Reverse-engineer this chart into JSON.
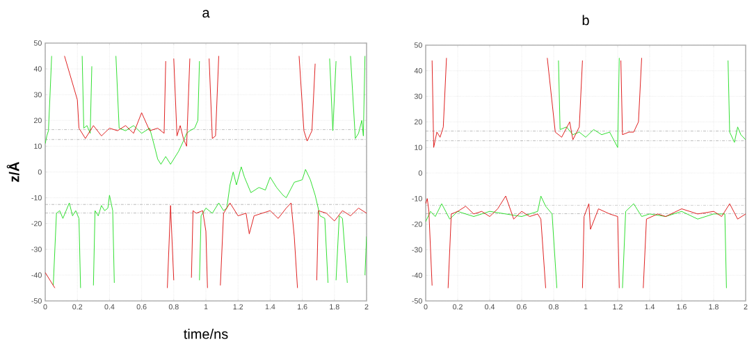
{
  "chart_data": [
    {
      "type": "line",
      "title": "a",
      "xlabel": "time/ns",
      "ylabel": "z/Å",
      "xlim": [
        0,
        2
      ],
      "ylim": [
        -50,
        50
      ],
      "xticks": [
        0,
        0.2,
        0.4,
        0.6,
        0.8,
        1,
        1.2,
        1.4,
        1.6,
        1.8,
        2
      ],
      "yticks": [
        -50,
        -40,
        -30,
        -20,
        -10,
        0,
        10,
        20,
        30,
        40,
        50
      ],
      "grid": true,
      "ref_lines": [
        {
          "axis": "y",
          "value": 16.4,
          "color": "#999999",
          "line_style": "dashed"
        },
        {
          "axis": "y",
          "value": 12.6,
          "color": "#999999",
          "line_style": "dashed"
        },
        {
          "axis": "y",
          "value": -12.6,
          "color": "#999999",
          "line_style": "dashed"
        },
        {
          "axis": "y",
          "value": -15.9,
          "color": "#999999",
          "line_style": "dashed"
        }
      ],
      "series": [
        {
          "color": "#22dd22",
          "x": [
            0,
            0.01,
            0.02,
            0.03,
            0.04
          ],
          "values": [
            11,
            14,
            16,
            30,
            45
          ]
        },
        {
          "color": "#22dd22",
          "x": [
            0.05,
            0.07,
            0.09,
            0.11,
            0.13,
            0.15,
            0.17,
            0.19,
            0.21,
            0.22
          ],
          "values": [
            -44,
            -16,
            -15,
            -18,
            -15,
            -12,
            -17,
            -15,
            -18,
            -45
          ]
        },
        {
          "color": "#22dd22",
          "x": [
            0.23,
            0.24,
            0.26,
            0.28,
            0.29
          ],
          "values": [
            45,
            17,
            18,
            15,
            41
          ]
        },
        {
          "color": "#22dd22",
          "x": [
            0.3,
            0.31,
            0.33,
            0.35,
            0.37,
            0.39,
            0.4,
            0.42,
            0.43
          ],
          "values": [
            -44,
            -15,
            -17,
            -13,
            -15,
            -14,
            -9,
            -15,
            -43
          ]
        },
        {
          "color": "#22dd22",
          "x": [
            0.44,
            0.46,
            0.5,
            0.55,
            0.6,
            0.65,
            0.68,
            0.7,
            0.72,
            0.75,
            0.78,
            0.8,
            0.83,
            0.86,
            0.88,
            0.9,
            0.93,
            0.95,
            0.96
          ],
          "values": [
            45,
            17,
            16,
            18,
            15,
            17,
            10,
            5,
            3,
            6,
            3,
            5,
            8,
            12,
            15,
            16,
            17,
            20,
            43
          ]
        },
        {
          "color": "#22dd22",
          "x": [
            0.96,
            0.97,
            1.0,
            1.04,
            1.08,
            1.11,
            1.13,
            1.15,
            1.17,
            1.19,
            1.22,
            1.24,
            1.28,
            1.33,
            1.37,
            1.4,
            1.44,
            1.48,
            1.5,
            1.55,
            1.6,
            1.62,
            1.65,
            1.68,
            1.71,
            1.74,
            1.76
          ],
          "values": [
            -42,
            -17,
            -14,
            -16,
            -12,
            -15,
            -14,
            -5,
            0,
            -5,
            2,
            -2,
            -8,
            -6,
            -7,
            -2,
            -6,
            -9,
            -10,
            -4,
            -3,
            1,
            -3,
            -9,
            -17,
            -18,
            -43
          ]
        },
        {
          "color": "#22dd22",
          "x": [
            1.77,
            1.79,
            1.81
          ],
          "values": [
            44,
            16,
            43
          ]
        },
        {
          "color": "#22dd22",
          "x": [
            1.81,
            1.83,
            1.85,
            1.88
          ],
          "values": [
            -42,
            -17,
            -18,
            -43
          ]
        },
        {
          "color": "#22dd22",
          "x": [
            1.9,
            1.93,
            1.95,
            1.97,
            1.98,
            1.99
          ],
          "values": [
            45,
            13,
            15,
            20,
            14,
            45
          ]
        },
        {
          "color": "#22dd22",
          "x": [
            1.99,
            2.0
          ],
          "values": [
            -40,
            -25
          ]
        },
        {
          "color": "#dd1111",
          "x": [
            0,
            0.03,
            0.06
          ],
          "values": [
            -39,
            -42,
            -45
          ]
        },
        {
          "color": "#dd1111",
          "x": [
            0.12,
            0.2,
            0.21,
            0.25,
            0.3,
            0.35,
            0.4,
            0.45,
            0.5,
            0.55,
            0.6,
            0.65,
            0.7,
            0.74,
            0.75
          ],
          "values": [
            45,
            28,
            17,
            13,
            18,
            14,
            17,
            16,
            18,
            15,
            23,
            16,
            17,
            15,
            43
          ]
        },
        {
          "color": "#dd1111",
          "x": [
            0.76,
            0.78,
            0.8
          ],
          "values": [
            -45,
            -13,
            -42
          ]
        },
        {
          "color": "#dd1111",
          "x": [
            0.8,
            0.82,
            0.84,
            0.86,
            0.88,
            0.9
          ],
          "values": [
            44,
            14,
            18,
            13,
            10,
            44
          ]
        },
        {
          "color": "#dd1111",
          "x": [
            0.91,
            0.92,
            0.94,
            0.98,
            1.0,
            1.01
          ],
          "values": [
            -41,
            -15,
            -16,
            -15,
            -23,
            -45
          ]
        },
        {
          "color": "#dd1111",
          "x": [
            1.02,
            1.04,
            1.06,
            1.08
          ],
          "values": [
            44,
            13,
            14,
            45
          ]
        },
        {
          "color": "#dd1111",
          "x": [
            1.09,
            1.11,
            1.15,
            1.2,
            1.25,
            1.27,
            1.3,
            1.35,
            1.4,
            1.45,
            1.5,
            1.53,
            1.55,
            1.57
          ],
          "values": [
            -44,
            -16,
            -12,
            -17,
            -16,
            -24,
            -17,
            -16,
            -15,
            -18,
            -14,
            -12,
            -25,
            -45
          ]
        },
        {
          "color": "#dd1111",
          "x": [
            1.58,
            1.61,
            1.63,
            1.66,
            1.68
          ],
          "values": [
            45,
            16,
            12,
            16,
            42
          ]
        },
        {
          "color": "#dd1111",
          "x": [
            1.69,
            1.7,
            1.75,
            1.8,
            1.85,
            1.9,
            1.95,
            2.0
          ],
          "values": [
            -42,
            -15,
            -16,
            -19,
            -15,
            -17,
            -14,
            -16
          ]
        }
      ]
    },
    {
      "type": "line",
      "title": "b",
      "xlim": [
        0,
        2
      ],
      "ylim": [
        -50,
        50
      ],
      "xticks": [
        0,
        0.2,
        0.4,
        0.6,
        0.8,
        1,
        1.2,
        1.4,
        1.6,
        1.8,
        2
      ],
      "yticks": [
        -50,
        -40,
        -30,
        -20,
        -10,
        0,
        10,
        20,
        30,
        40,
        50
      ],
      "grid": true,
      "ref_lines": [
        {
          "axis": "y",
          "value": 16.4,
          "color": "#999999",
          "line_style": "dashed"
        },
        {
          "axis": "y",
          "value": 12.6,
          "color": "#999999",
          "line_style": "dashed"
        },
        {
          "axis": "y",
          "value": -12.6,
          "color": "#999999",
          "line_style": "dashed"
        },
        {
          "axis": "y",
          "value": -15.9,
          "color": "#999999",
          "line_style": "dashed"
        }
      ],
      "series": [
        {
          "color": "#22dd22",
          "x": [
            0,
            0.03,
            0.06,
            0.1,
            0.15,
            0.2,
            0.3,
            0.4,
            0.5,
            0.6,
            0.7,
            0.72,
            0.75,
            0.79,
            0.82
          ],
          "values": [
            -19,
            -15,
            -17,
            -12,
            -18,
            -15,
            -17,
            -15,
            -16,
            -17,
            -15,
            -9,
            -13,
            -16,
            -45
          ]
        },
        {
          "color": "#22dd22",
          "x": [
            0.83,
            0.84,
            0.88,
            0.92,
            0.96,
            1.0,
            1.05,
            1.1,
            1.15,
            1.2,
            1.21
          ],
          "values": [
            44,
            17,
            18,
            15,
            16,
            14,
            17,
            15,
            16,
            10,
            45
          ]
        },
        {
          "color": "#22dd22",
          "x": [
            1.23,
            1.25,
            1.3,
            1.35,
            1.4,
            1.5,
            1.6,
            1.7,
            1.8,
            1.87,
            1.88
          ],
          "values": [
            -45,
            -15,
            -12,
            -17,
            -16,
            -17,
            -15,
            -18,
            -16,
            -16,
            -45
          ]
        },
        {
          "color": "#22dd22",
          "x": [
            1.89,
            1.9,
            1.93,
            1.95,
            1.97,
            2.0
          ],
          "values": [
            44,
            16,
            12,
            18,
            15,
            13
          ]
        },
        {
          "color": "#dd1111",
          "x": [
            0,
            0.01,
            0.02,
            0.04
          ],
          "values": [
            -12,
            -10,
            -15,
            -44
          ]
        },
        {
          "color": "#dd1111",
          "x": [
            0.04,
            0.05,
            0.07,
            0.09,
            0.11,
            0.13
          ],
          "values": [
            44,
            10,
            16,
            14,
            18,
            45
          ]
        },
        {
          "color": "#dd1111",
          "x": [
            0.14,
            0.16,
            0.2,
            0.25,
            0.3,
            0.35,
            0.4,
            0.45,
            0.5,
            0.55,
            0.6,
            0.65,
            0.7,
            0.72,
            0.75
          ],
          "values": [
            -45,
            -16,
            -15,
            -13,
            -16,
            -15,
            -17,
            -14,
            -9,
            -18,
            -15,
            -17,
            -16,
            -18,
            -45
          ]
        },
        {
          "color": "#dd1111",
          "x": [
            0.76,
            0.81,
            0.85,
            0.9,
            0.92,
            0.96,
            0.98
          ],
          "values": [
            45,
            16,
            14,
            20,
            13,
            18,
            44
          ]
        },
        {
          "color": "#dd1111",
          "x": [
            0.98,
            0.99,
            1.02,
            1.03,
            1.08,
            1.15,
            1.2,
            1.21
          ],
          "values": [
            -45,
            -17,
            -12,
            -22,
            -14,
            -16,
            -17,
            -45
          ]
        },
        {
          "color": "#dd1111",
          "x": [
            1.22,
            1.23,
            1.27,
            1.3,
            1.33,
            1.35
          ],
          "values": [
            44,
            15,
            16,
            16,
            20,
            45
          ]
        },
        {
          "color": "#dd1111",
          "x": [
            1.36,
            1.38,
            1.45,
            1.5,
            1.6,
            1.7,
            1.8,
            1.85,
            1.9,
            1.95,
            2.0
          ],
          "values": [
            -45,
            -18,
            -16,
            -17,
            -14,
            -16,
            -15,
            -17,
            -12,
            -18,
            -16
          ]
        }
      ]
    }
  ]
}
